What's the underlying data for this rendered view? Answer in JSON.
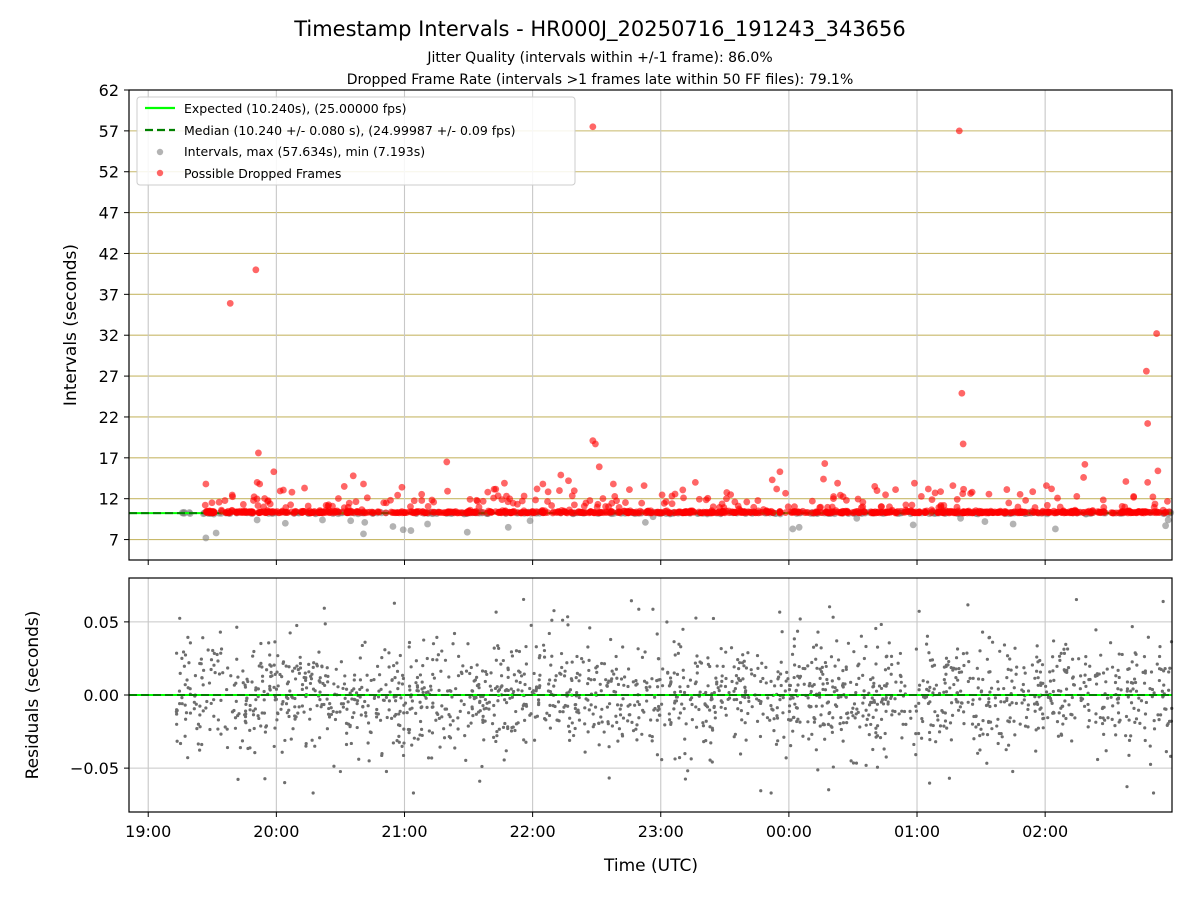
{
  "chart_data": [
    {
      "panel": "intervals",
      "type": "scatter",
      "title": "Timestamp Intervals - HR000J_20250716_191243_343656",
      "subtitle_lines": [
        "Jitter Quality (intervals within +/-1 frame): 86.0%",
        "Dropped Frame Rate (intervals >1 frames late within 50 FF files): 79.1%"
      ],
      "ylabel": "Intervals (seconds)",
      "ylim": [
        4.5,
        62
      ],
      "yticks": [
        "62",
        "57",
        "52",
        "47",
        "42",
        "37",
        "32",
        "27",
        "22",
        "17",
        "12",
        "7"
      ],
      "ytick_values": [
        62,
        57,
        52,
        47,
        42,
        37,
        32,
        27,
        22,
        17,
        12,
        7
      ],
      "xlim_hours": [
        18.85,
        26.99
      ],
      "xticks": [
        "19:00",
        "20:00",
        "21:00",
        "22:00",
        "23:00",
        "00:00",
        "01:00",
        "02:00"
      ],
      "xtick_hours": [
        19,
        20,
        21,
        22,
        23,
        24,
        25,
        26
      ],
      "grid": "y-lines gold, x-lines grey",
      "legend_position": "top-left",
      "legend": [
        "Expected (10.240s), (25.00000 fps)",
        "Median (10.240 +/- 0.080 s), (24.99987 +/- 0.09 fps)",
        "Intervals, max (57.634s), min (7.193s)",
        "Possible Dropped Frames"
      ],
      "expected_interval": 10.24,
      "median_interval": 10.24,
      "data_start_hour": 19.22,
      "data_end_hour": 26.99,
      "baseline_dropped_start_hour": 19.44,
      "outliers": [
        {
          "t": 19.64,
          "v": 35.9
        },
        {
          "t": 19.84,
          "v": 40.0
        },
        {
          "t": 19.86,
          "v": 17.6
        },
        {
          "t": 19.85,
          "v": 14.0
        },
        {
          "t": 19.87,
          "v": 13.8
        },
        {
          "t": 19.45,
          "v": 13.8
        },
        {
          "t": 19.98,
          "v": 15.3
        },
        {
          "t": 20.22,
          "v": 13.3
        },
        {
          "t": 20.6,
          "v": 14.8
        },
        {
          "t": 20.53,
          "v": 13.5
        },
        {
          "t": 20.68,
          "v": 13.8
        },
        {
          "t": 20.98,
          "v": 13.4
        },
        {
          "t": 21.33,
          "v": 16.5
        },
        {
          "t": 21.65,
          "v": 12.8
        },
        {
          "t": 21.78,
          "v": 13.9
        },
        {
          "t": 22.08,
          "v": 13.8
        },
        {
          "t": 22.22,
          "v": 14.9
        },
        {
          "t": 22.28,
          "v": 14.2
        },
        {
          "t": 22.47,
          "v": 57.5
        },
        {
          "t": 22.47,
          "v": 19.1
        },
        {
          "t": 22.49,
          "v": 18.7
        },
        {
          "t": 22.52,
          "v": 15.9
        },
        {
          "t": 22.63,
          "v": 13.8
        },
        {
          "t": 22.87,
          "v": 13.6
        },
        {
          "t": 23.27,
          "v": 14.0
        },
        {
          "t": 23.87,
          "v": 14.3
        },
        {
          "t": 23.93,
          "v": 15.3
        },
        {
          "t": 24.28,
          "v": 16.3
        },
        {
          "t": 24.27,
          "v": 14.4
        },
        {
          "t": 24.38,
          "v": 13.9
        },
        {
          "t": 24.67,
          "v": 13.5
        },
        {
          "t": 24.98,
          "v": 13.9
        },
        {
          "t": 25.33,
          "v": 57.0
        },
        {
          "t": 25.35,
          "v": 24.9
        },
        {
          "t": 25.36,
          "v": 18.7
        },
        {
          "t": 25.28,
          "v": 13.6
        },
        {
          "t": 25.43,
          "v": 12.8
        },
        {
          "t": 26.01,
          "v": 13.6
        },
        {
          "t": 26.05,
          "v": 13.2
        },
        {
          "t": 26.31,
          "v": 16.2
        },
        {
          "t": 26.3,
          "v": 14.6
        },
        {
          "t": 26.63,
          "v": 14.1
        },
        {
          "t": 26.79,
          "v": 27.6
        },
        {
          "t": 26.8,
          "v": 21.2
        },
        {
          "t": 26.8,
          "v": 14.0
        },
        {
          "t": 26.87,
          "v": 32.2
        },
        {
          "t": 26.88,
          "v": 15.4
        }
      ],
      "low_intervals": [
        {
          "t": 19.45,
          "v": 7.2
        },
        {
          "t": 19.53,
          "v": 7.8
        },
        {
          "t": 19.85,
          "v": 9.4
        },
        {
          "t": 20.07,
          "v": 9.0
        },
        {
          "t": 20.36,
          "v": 9.4
        },
        {
          "t": 20.58,
          "v": 9.3
        },
        {
          "t": 20.68,
          "v": 7.7
        },
        {
          "t": 20.69,
          "v": 9.1
        },
        {
          "t": 20.91,
          "v": 8.6
        },
        {
          "t": 20.99,
          "v": 8.2
        },
        {
          "t": 21.05,
          "v": 8.1
        },
        {
          "t": 21.18,
          "v": 8.9
        },
        {
          "t": 21.49,
          "v": 7.9
        },
        {
          "t": 21.81,
          "v": 8.5
        },
        {
          "t": 21.98,
          "v": 9.3
        },
        {
          "t": 22.88,
          "v": 9.1
        },
        {
          "t": 22.94,
          "v": 9.8
        },
        {
          "t": 24.03,
          "v": 8.3
        },
        {
          "t": 24.08,
          "v": 8.5
        },
        {
          "t": 24.53,
          "v": 9.6
        },
        {
          "t": 24.97,
          "v": 8.8
        },
        {
          "t": 25.34,
          "v": 9.6
        },
        {
          "t": 25.53,
          "v": 9.2
        },
        {
          "t": 25.75,
          "v": 8.9
        },
        {
          "t": 26.08,
          "v": 8.3
        },
        {
          "t": 26.94,
          "v": 8.7
        },
        {
          "t": 26.96,
          "v": 9.4
        }
      ]
    },
    {
      "panel": "residuals",
      "type": "scatter",
      "ylabel": "Residuals (seconds)",
      "xlabel": "Time (UTC)",
      "ylim": [
        -0.08,
        0.08
      ],
      "yticks": [
        "0.05",
        "0.00",
        "−0.05"
      ],
      "ytick_values": [
        0.05,
        0.0,
        -0.05
      ],
      "xticks": [
        "19:00",
        "20:00",
        "21:00",
        "22:00",
        "23:00",
        "00:00",
        "01:00",
        "02:00"
      ],
      "xtick_hours": [
        19,
        20,
        21,
        22,
        23,
        24,
        25,
        26
      ],
      "grid": "on",
      "reference_line": 0.0,
      "approx_points": 1800,
      "typical_std": 0.018,
      "range": [
        -0.067,
        0.078
      ]
    }
  ],
  "colors": {
    "expected_line": "#00ff00",
    "median_line": "#008000",
    "intervals": "#808080",
    "dropped": "#ff0000",
    "residuals": "#6e6e6e",
    "grid_y": "#c8b96a",
    "grid_x": "#c8c8c8"
  }
}
